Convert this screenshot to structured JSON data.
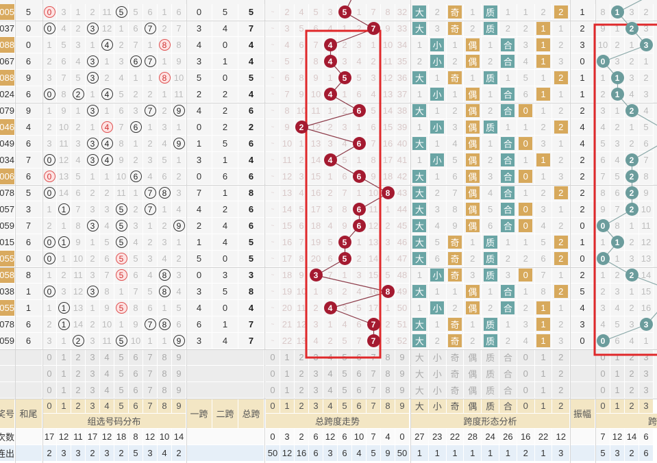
{
  "colors": {
    "ball_red": "#a41a30",
    "ball_teal": "#6b9c9c",
    "tag_teal": "#6aa5a5",
    "tag_gold": "#d7a95c",
    "highlight_box": "#e0282a",
    "label_bg": "#f3e6c4"
  },
  "rows": [
    {
      "num": "05",
      "hl": true,
      "tail": "5",
      "dist": [
        0,
        3,
        1,
        2,
        11,
        5,
        5,
        6,
        1,
        6
      ],
      "hits": [
        0,
        5
      ],
      "dup": 0,
      "s1": "0",
      "s2": "5",
      "span": 5,
      "st": [
        "~",
        2,
        4,
        5,
        3,
        5,
        1,
        7,
        8,
        32
      ],
      "form": [
        "大",
        "2",
        "奇",
        "1",
        "质",
        "1",
        "1",
        "2",
        "2"
      ],
      "m3": 2,
      "amp": 1,
      "at": [
        8,
        1,
        3,
        2
      ]
    },
    {
      "num": "37",
      "hl": false,
      "tail": "0",
      "dist": [
        0,
        4,
        2,
        3,
        12,
        1,
        6,
        7,
        2,
        7
      ],
      "hits": [
        0,
        3,
        7
      ],
      "dup": null,
      "s1": "3",
      "s2": "4",
      "span": 7,
      "st": [
        "~",
        3,
        5,
        6,
        4,
        1,
        2,
        7,
        9,
        33
      ],
      "form": [
        "大",
        "3",
        "奇",
        "2",
        "质",
        "2",
        "2",
        "1",
        "1"
      ],
      "m3": 1,
      "amp": 2,
      "at": [
        9,
        1,
        2,
        3
      ]
    },
    {
      "num": "88",
      "hl": true,
      "tail": "0",
      "dist": [
        1,
        5,
        3,
        1,
        4,
        2,
        7,
        1,
        8,
        8
      ],
      "hits": [
        4,
        8
      ],
      "dup": 8,
      "s1": "4",
      "s2": "0",
      "span": 4,
      "st": [
        "~",
        4,
        6,
        7,
        4,
        2,
        3,
        1,
        10,
        34
      ],
      "form": [
        "1",
        "小",
        "1",
        "偶",
        "1",
        "合",
        "3",
        "1",
        "2"
      ],
      "m3": 1,
      "amp": 3,
      "at": [
        10,
        2,
        1,
        3
      ]
    },
    {
      "num": "67",
      "hl": false,
      "tail": "6",
      "dist": [
        2,
        6,
        4,
        3,
        1,
        3,
        6,
        7,
        1,
        9
      ],
      "hits": [
        3,
        6,
        7
      ],
      "dup": null,
      "s1": "3",
      "s2": "1",
      "span": 4,
      "st": [
        "~",
        5,
        7,
        8,
        4,
        3,
        4,
        2,
        11,
        35
      ],
      "form": [
        "2",
        "小",
        "2",
        "偶",
        "2",
        "合",
        "4",
        "1",
        "3"
      ],
      "m3": 1,
      "amp": 0,
      "at": [
        0,
        3,
        2,
        1
      ]
    },
    {
      "num": "88",
      "hl": true,
      "tail": "9",
      "dist": [
        3,
        7,
        5,
        3,
        2,
        4,
        1,
        1,
        8,
        10
      ],
      "hits": [
        3,
        8
      ],
      "dup": 8,
      "s1": "5",
      "s2": "0",
      "span": 5,
      "st": [
        "~",
        6,
        8,
        9,
        1,
        5,
        5,
        3,
        12,
        36
      ],
      "form": [
        "大",
        "1",
        "奇",
        "1",
        "质",
        "1",
        "5",
        "1",
        "2"
      ],
      "m3": 2,
      "amp": 1,
      "at": [
        1,
        1,
        3,
        2
      ]
    },
    {
      "num": "24",
      "hl": false,
      "tail": "6",
      "dist": [
        0,
        8,
        2,
        1,
        4,
        5,
        2,
        2,
        1,
        11
      ],
      "hits": [
        0,
        2,
        4
      ],
      "dup": null,
      "s1": "2",
      "s2": "2",
      "span": 4,
      "st": [
        "~",
        7,
        9,
        10,
        4,
        1,
        6,
        4,
        13,
        37
      ],
      "form": [
        "1",
        "小",
        "1",
        "偶",
        "1",
        "合",
        "6",
        "1",
        "1"
      ],
      "m3": 1,
      "amp": 1,
      "at": [
        2,
        1,
        4,
        3
      ]
    },
    {
      "num": "79",
      "hl": false,
      "tail": "9",
      "dist": [
        1,
        9,
        1,
        3,
        1,
        6,
        3,
        7,
        2,
        9
      ],
      "hits": [
        3,
        7,
        9
      ],
      "dup": null,
      "s1": "4",
      "s2": "2",
      "span": 6,
      "st": [
        "~",
        8,
        10,
        11,
        1,
        2,
        6,
        5,
        14,
        38
      ],
      "form": [
        "大",
        "1",
        "2",
        "偶",
        "2",
        "合",
        "0",
        "1",
        "2"
      ],
      "m3": 0,
      "amp": 2,
      "at": [
        3,
        1,
        2,
        4
      ]
    },
    {
      "num": "46",
      "hl": true,
      "tail": "4",
      "dist": [
        2,
        10,
        2,
        1,
        4,
        7,
        6,
        1,
        3,
        1
      ],
      "hits": [
        4,
        6
      ],
      "dup": 4,
      "s1": "0",
      "s2": "2",
      "span": 2,
      "st": [
        "~",
        9,
        2,
        12,
        2,
        3,
        1,
        6,
        15,
        39
      ],
      "form": [
        "1",
        "小",
        "3",
        "偶",
        "质",
        "1",
        "1",
        "2",
        "2"
      ],
      "m3": 2,
      "amp": 4,
      "at": [
        4,
        2,
        1,
        5
      ]
    },
    {
      "num": "49",
      "hl": false,
      "tail": "6",
      "dist": [
        3,
        11,
        3,
        3,
        4,
        8,
        1,
        2,
        4,
        9
      ],
      "hits": [
        3,
        4,
        9
      ],
      "dup": null,
      "s1": "1",
      "s2": "5",
      "span": 6,
      "st": [
        "~",
        10,
        1,
        13,
        3,
        4,
        6,
        7,
        16,
        40
      ],
      "form": [
        "大",
        "1",
        "4",
        "偶",
        "1",
        "合",
        "0",
        "3",
        "1"
      ],
      "m3": 0,
      "amp": 4,
      "at": [
        5,
        3,
        2,
        6
      ]
    },
    {
      "num": "34",
      "hl": false,
      "tail": "7",
      "dist": [
        0,
        12,
        4,
        3,
        4,
        9,
        2,
        3,
        5,
        1
      ],
      "hits": [
        0,
        3,
        4
      ],
      "dup": null,
      "s1": "3",
      "s2": "1",
      "span": 4,
      "st": [
        "~",
        11,
        2,
        14,
        4,
        5,
        1,
        8,
        17,
        41
      ],
      "form": [
        "1",
        "小",
        "5",
        "偶",
        "2",
        "合",
        "1",
        "1",
        "2"
      ],
      "m3": 1,
      "amp": 2,
      "at": [
        6,
        4,
        2,
        7
      ]
    },
    {
      "num": "06",
      "hl": true,
      "tail": "6",
      "dist": [
        0,
        13,
        5,
        1,
        1,
        10,
        6,
        4,
        6,
        2
      ],
      "hits": [
        0,
        6
      ],
      "dup": 0,
      "s1": "0",
      "s2": "6",
      "span": 6,
      "st": [
        "~",
        12,
        3,
        15,
        1,
        6,
        6,
        9,
        18,
        42
      ],
      "form": [
        "大",
        "1",
        "6",
        "偶",
        "3",
        "合",
        "0",
        "1",
        "3"
      ],
      "m3": 0,
      "amp": 2,
      "at": [
        7,
        5,
        2,
        8
      ]
    },
    {
      "num": "78",
      "hl": false,
      "tail": "5",
      "dist": [
        0,
        14,
        6,
        2,
        2,
        11,
        1,
        7,
        8,
        3
      ],
      "hits": [
        0,
        7,
        8
      ],
      "dup": null,
      "s1": "7",
      "s2": "1",
      "span": 8,
      "st": [
        "~",
        13,
        4,
        16,
        2,
        7,
        1,
        10,
        8,
        43
      ],
      "form": [
        "大",
        "2",
        "7",
        "偶",
        "4",
        "合",
        "1",
        "2",
        "2"
      ],
      "m3": 2,
      "amp": 2,
      "at": [
        8,
        6,
        2,
        9
      ]
    },
    {
      "num": "57",
      "hl": false,
      "tail": "3",
      "dist": [
        1,
        1,
        7,
        3,
        3,
        5,
        2,
        7,
        1,
        4
      ],
      "hits": [
        1,
        5,
        7
      ],
      "dup": null,
      "s1": "4",
      "s2": "2",
      "span": 6,
      "st": [
        "~",
        14,
        5,
        17,
        3,
        8,
        6,
        11,
        1,
        44
      ],
      "form": [
        "大",
        "3",
        "8",
        "偶",
        "5",
        "合",
        "0",
        "3",
        "1"
      ],
      "m3": 0,
      "amp": 2,
      "at": [
        9,
        7,
        2,
        10
      ]
    },
    {
      "num": "59",
      "hl": false,
      "tail": "7",
      "dist": [
        2,
        1,
        8,
        3,
        4,
        5,
        3,
        1,
        2,
        9
      ],
      "hits": [
        3,
        5,
        9
      ],
      "dup": null,
      "s1": "2",
      "s2": "4",
      "span": 6,
      "st": [
        "~",
        15,
        6,
        18,
        4,
        9,
        6,
        12,
        2,
        45
      ],
      "form": [
        "大",
        "4",
        "9",
        "偶",
        "6",
        "合",
        "0",
        "4",
        "2"
      ],
      "m3": 0,
      "amp": 0,
      "at": [
        0,
        8,
        1,
        11
      ]
    },
    {
      "num": "15",
      "hl": false,
      "tail": "6",
      "dist": [
        0,
        1,
        9,
        1,
        5,
        5,
        4,
        2,
        3,
        1
      ],
      "hits": [
        0,
        1,
        5
      ],
      "dup": null,
      "s1": "1",
      "s2": "4",
      "span": 5,
      "st": [
        "~",
        16,
        7,
        19,
        5,
        5,
        1,
        13,
        3,
        46
      ],
      "form": [
        "大",
        "5",
        "奇",
        "1",
        "质",
        "1",
        "1",
        "5",
        "2"
      ],
      "m3": 2,
      "amp": 1,
      "at": [
        1,
        1,
        2,
        12
      ]
    },
    {
      "num": "55",
      "hl": true,
      "tail": "0",
      "dist": [
        0,
        1,
        10,
        2,
        6,
        5,
        5,
        3,
        4,
        2
      ],
      "hits": [
        0,
        5
      ],
      "dup": 5,
      "s1": "5",
      "s2": "0",
      "span": 5,
      "st": [
        "~",
        17,
        8,
        20,
        6,
        5,
        2,
        14,
        4,
        47
      ],
      "form": [
        "大",
        "6",
        "奇",
        "2",
        "质",
        "2",
        "2",
        "6",
        "2"
      ],
      "m3": 2,
      "amp": 0,
      "at": [
        0,
        1,
        3,
        13
      ]
    },
    {
      "num": "58",
      "hl": true,
      "tail": "8",
      "dist": [
        1,
        2,
        11,
        3,
        7,
        5,
        6,
        4,
        8,
        3
      ],
      "hits": [
        5,
        8
      ],
      "dup": 5,
      "s1": "0",
      "s2": "3",
      "span": 3,
      "st": [
        "~",
        18,
        9,
        3,
        7,
        1,
        3,
        15,
        5,
        48
      ],
      "form": [
        "1",
        "小",
        "奇",
        "3",
        "质",
        "3",
        "0",
        "7",
        "1"
      ],
      "m3": 0,
      "amp": 2,
      "at": [
        1,
        2,
        2,
        14
      ]
    },
    {
      "num": "38",
      "hl": false,
      "tail": "1",
      "dist": [
        0,
        3,
        12,
        3,
        8,
        1,
        7,
        5,
        8,
        4
      ],
      "hits": [
        0,
        3,
        8
      ],
      "dup": null,
      "s1": "3",
      "s2": "5",
      "span": 8,
      "st": [
        "~",
        19,
        10,
        1,
        8,
        2,
        4,
        16,
        8,
        49
      ],
      "form": [
        "大",
        "1",
        "1",
        "偶",
        "1",
        "合",
        "1",
        "8",
        "2"
      ],
      "m3": 2,
      "amp": 5,
      "at": [
        2,
        3,
        1,
        15
      ]
    },
    {
      "num": "55",
      "hl": true,
      "tail": "1",
      "dist": [
        1,
        1,
        13,
        1,
        9,
        5,
        8,
        6,
        1,
        5
      ],
      "hits": [
        1,
        5
      ],
      "dup": 5,
      "s1": "4",
      "s2": "0",
      "span": 4,
      "st": [
        "~",
        20,
        11,
        2,
        4,
        3,
        5,
        17,
        1,
        50
      ],
      "form": [
        "1",
        "小",
        "2",
        "偶",
        "2",
        "合",
        "2",
        "1",
        "1"
      ],
      "m3": 1,
      "amp": 4,
      "at": [
        3,
        4,
        2,
        16
      ]
    },
    {
      "num": "78",
      "hl": false,
      "tail": "6",
      "dist": [
        2,
        1,
        14,
        2,
        10,
        1,
        9,
        7,
        8,
        6
      ],
      "hits": [
        1,
        7,
        8
      ],
      "dup": null,
      "s1": "6",
      "s2": "1",
      "span": 7,
      "st": [
        "~",
        21,
        12,
        3,
        1,
        4,
        6,
        7,
        2,
        51
      ],
      "form": [
        "大",
        "1",
        "奇",
        "1",
        "质",
        "1",
        "3",
        "1",
        "2"
      ],
      "m3": 1,
      "amp": 3,
      "at": [
        4,
        5,
        3,
        3
      ]
    },
    {
      "num": "59",
      "hl": false,
      "tail": "6",
      "dist": [
        3,
        1,
        2,
        3,
        11,
        5,
        10,
        1,
        1,
        9
      ],
      "hits": [
        2,
        5,
        9
      ],
      "dup": null,
      "s1": "3",
      "s2": "4",
      "span": 7,
      "st": [
        "~",
        22,
        13,
        4,
        2,
        5,
        7,
        7,
        3,
        52
      ],
      "form": [
        "大",
        "2",
        "奇",
        "2",
        "质",
        "2",
        "4",
        "1",
        "3"
      ],
      "m3": 1,
      "amp": 0,
      "at": [
        0,
        6,
        4,
        1
      ]
    }
  ],
  "footer": {
    "digits": [
      "0",
      "1",
      "2",
      "3",
      "4",
      "5",
      "6",
      "7",
      "8",
      "9"
    ],
    "form_heads": [
      "大",
      "小",
      "奇",
      "偶",
      "质",
      "合",
      "0",
      "1",
      "2"
    ],
    "amp_digits": [
      "0",
      "1",
      "2",
      "3"
    ],
    "labels": {
      "issue": "开奖号",
      "tail": "和尾",
      "dist": "组选号码分布",
      "s1": "一跨",
      "s2": "二跨",
      "span": "总跨",
      "span_trend": "总跨度走势",
      "form": "跨度形态分析",
      "amp": "振幅",
      "amp_trend": "跨度走势"
    },
    "stats": [
      {
        "label": "出现次数",
        "dist": [
          17,
          12,
          11,
          17,
          12,
          18,
          8,
          12,
          10,
          14
        ],
        "st": [
          0,
          3,
          2,
          6,
          12,
          6,
          10,
          7,
          4,
          0
        ],
        "form": [
          27,
          23,
          22,
          28,
          24,
          26,
          16,
          22,
          12
        ],
        "at": [
          7,
          12,
          14,
          6
        ]
      },
      {
        "label": "最大连出",
        "dist": [
          2,
          3,
          3,
          2,
          3,
          2,
          5,
          3,
          4,
          2
        ],
        "st": [
          50,
          12,
          16,
          6,
          3,
          6,
          4,
          5,
          9,
          50
        ],
        "form": [
          1,
          1,
          1,
          1,
          1,
          1,
          2,
          1,
          3
        ],
        "at": [
          5,
          3,
          2,
          6
        ]
      }
    ]
  }
}
